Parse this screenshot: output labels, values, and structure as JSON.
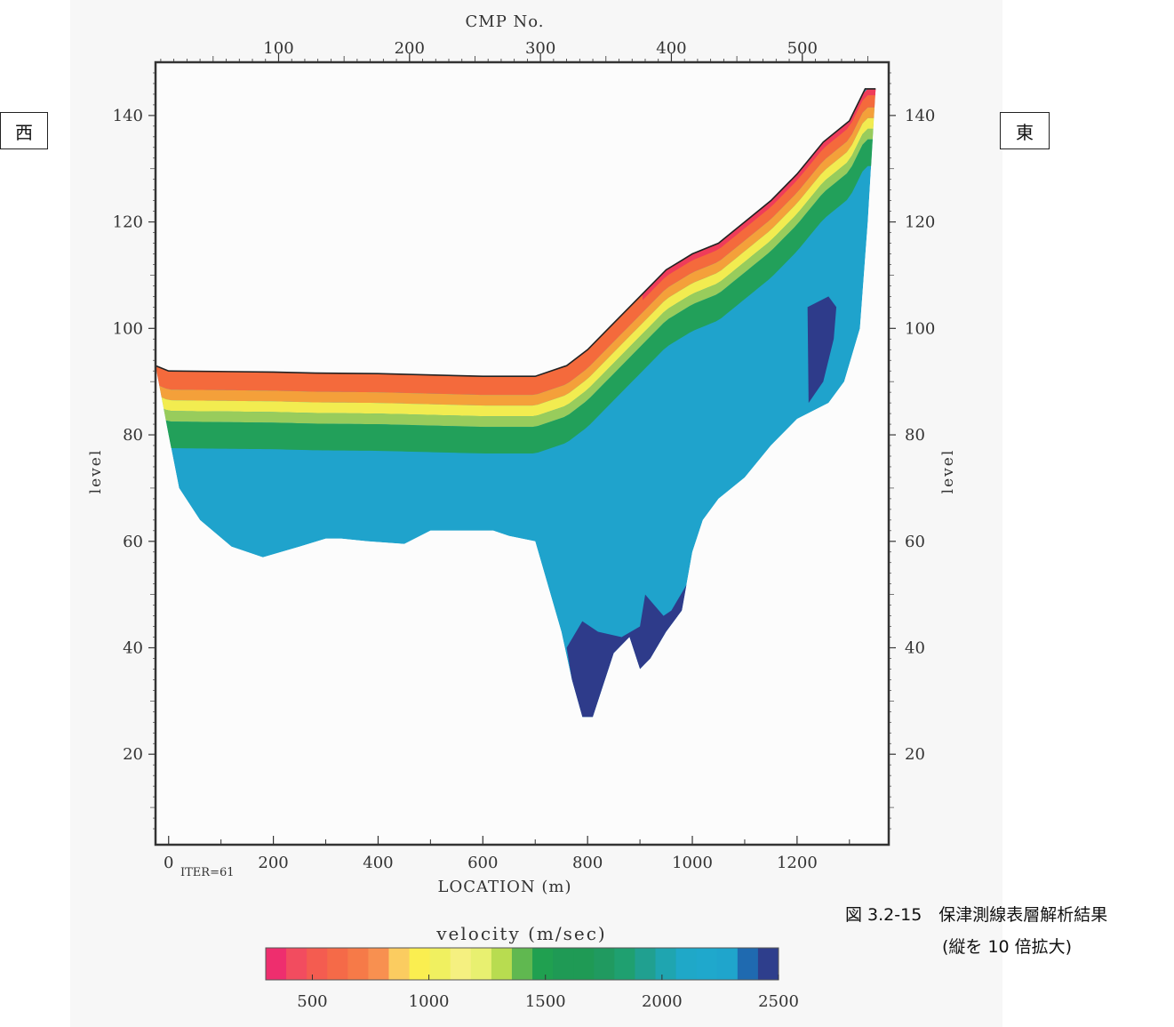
{
  "labels": {
    "west": "西",
    "east": "東",
    "figure_caption": "図 3.2-15　保津測線表層解析結果",
    "figure_note": "(縦を 10 倍拡大)"
  },
  "chart_data": {
    "type": "heatmap",
    "top_axis_title": "CMP No.",
    "xlabel": "LOCATION (m)",
    "ylabel": "level",
    "annotation": "ITER=61",
    "xlim": [
      -25,
      1375
    ],
    "ylim": [
      3,
      150
    ],
    "cmp_to_location_offset": -40,
    "cmp_to_location_scale": 2.5,
    "top_ticks": [
      "100",
      "200",
      "300",
      "400",
      "500"
    ],
    "x_ticks": [
      "0",
      "200",
      "400",
      "600",
      "800",
      "1000",
      "1200"
    ],
    "y_ticks": [
      "20",
      "40",
      "60",
      "80",
      "100",
      "120",
      "140"
    ],
    "colorbar": {
      "title": "velocity (m/sec)",
      "range": [
        300,
        2500
      ],
      "ticks": [
        "500",
        "1000",
        "1500",
        "2000",
        "2500"
      ],
      "colors": [
        "#ee2e6e",
        "#f24c5f",
        "#f45c50",
        "#f56a48",
        "#f67a48",
        "#f89050",
        "#fbcc60",
        "#faee50",
        "#f0f060",
        "#f5f080",
        "#e8f070",
        "#b8dc50",
        "#60b850",
        "#20a050",
        "#1f9a55",
        "#1f9a55",
        "#209a60",
        "#1fa070",
        "#20a090",
        "#1fa5b0",
        "#1fa8c8",
        "#1fa8cc",
        "#1fa5cc",
        "#1f6ab0",
        "#2e3e8c"
      ]
    },
    "surface": {
      "x": [
        -25,
        0,
        200,
        280,
        400,
        600,
        700,
        760,
        800,
        850,
        900,
        950,
        1000,
        1050,
        1100,
        1150,
        1200,
        1250,
        1300,
        1330,
        1350
      ],
      "y": [
        93,
        92,
        91.8,
        91.6,
        91.5,
        91,
        91,
        93,
        96,
        101,
        106,
        111,
        114,
        116,
        120,
        124,
        129,
        135,
        139,
        145,
        145
      ]
    },
    "bottom": {
      "x": [
        1335,
        1320,
        1290,
        1260,
        1200,
        1150,
        1100,
        1050,
        1020,
        1000,
        980,
        950,
        920,
        900,
        880,
        850,
        830,
        810,
        790,
        770,
        750,
        700,
        650,
        620,
        500,
        450,
        380,
        330,
        300,
        250,
        180,
        120,
        60,
        20,
        0
      ],
      "y": [
        120,
        100,
        90,
        86,
        83,
        78,
        72,
        68,
        64,
        58,
        47,
        43,
        38,
        36,
        42,
        39,
        33,
        27,
        27,
        34,
        43,
        60,
        61,
        62,
        62,
        59.5,
        60,
        60.5,
        60.5,
        59,
        57,
        59,
        64,
        70,
        80
      ]
    },
    "layers": [
      {
        "name": "",
        "top_offset": 0,
        "thickness": 3.5,
        "color": "#f46a3c"
      },
      {
        "name": "",
        "top_offset": 3.5,
        "thickness": 2,
        "color": "#f4a03a"
      },
      {
        "name": "",
        "top_offset": 5.5,
        "thickness": 2,
        "color": "#f2ec50"
      },
      {
        "name": "",
        "top_offset": 7.5,
        "thickness": 2,
        "color": "#98cc5c"
      },
      {
        "name": "",
        "top_offset": 9.5,
        "thickness": 5,
        "color": "#22a05a"
      }
    ],
    "deep_zones": [
      {
        "x": [
          865,
          900,
          910,
          945,
          960,
          990,
          1005,
          1000,
          980,
          950,
          920,
          900,
          880,
          850,
          830,
          810,
          790,
          770,
          760,
          790,
          820
        ],
        "y": [
          42,
          44,
          50,
          46,
          47,
          52,
          58,
          55,
          47,
          43,
          38,
          36,
          42,
          39,
          33,
          27,
          27,
          34,
          40,
          45,
          43
        ]
      },
      {
        "x": [
          1220,
          1260,
          1275,
          1270,
          1250,
          1222
        ],
        "y": [
          104,
          106,
          104,
          98,
          90,
          86
        ]
      }
    ]
  }
}
